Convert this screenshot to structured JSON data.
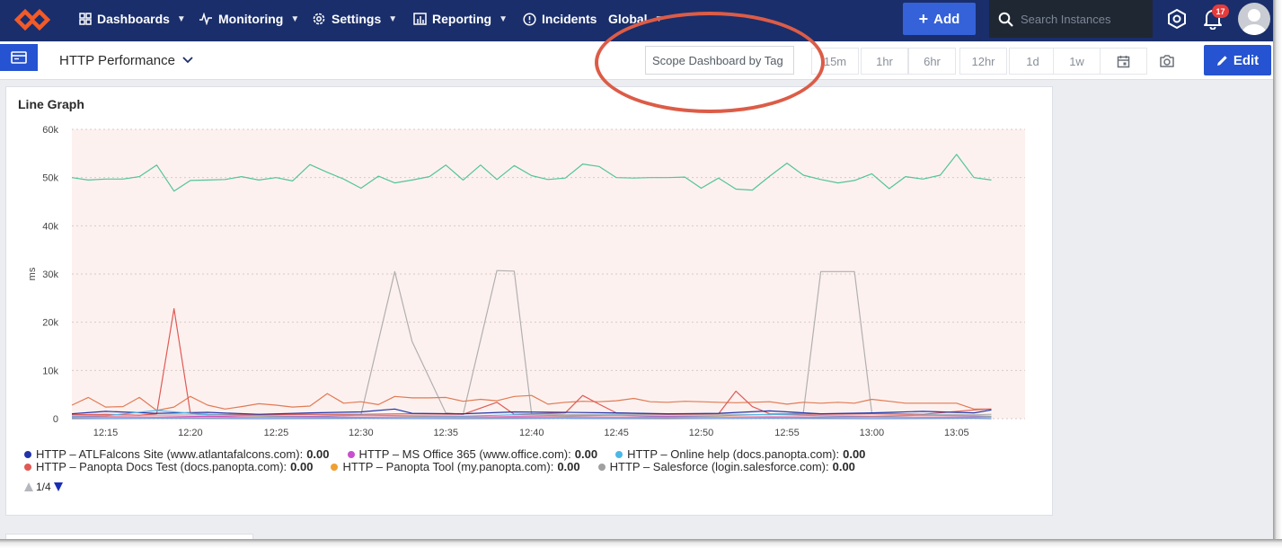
{
  "nav": {
    "items": [
      {
        "label": "Dashboards",
        "icon": "dashboards-icon",
        "has_menu": true
      },
      {
        "label": "Monitoring",
        "icon": "monitoring-icon",
        "has_menu": true
      },
      {
        "label": "Settings",
        "icon": "settings-icon",
        "has_menu": true
      },
      {
        "label": "Reporting",
        "icon": "reporting-icon",
        "has_menu": true
      },
      {
        "label": "Incidents",
        "icon": "incidents-icon",
        "has_menu": false
      },
      {
        "label": "Global",
        "icon": "",
        "has_menu": true
      }
    ],
    "add_label": "Add",
    "search_placeholder": "Search Instances",
    "notification_count": "17",
    "colors": {
      "bar": "#1a2e6b",
      "accent": "#3562d9",
      "logo": "#f15a29",
      "badge": "#e53b3b"
    }
  },
  "toolbar": {
    "dashboard_title": "HTTP Performance",
    "scope_placeholder": "Scope Dashboard by Tag",
    "time_ranges": [
      "15m",
      "1hr",
      "6hr",
      "12hr",
      "1d",
      "1w"
    ],
    "edit_label": "Edit",
    "annotation_color": "#dc5c47"
  },
  "widget": {
    "title": "Line Graph",
    "pager": "1/4",
    "legend_rows": [
      [
        {
          "label": "HTTP – ATLFalcons Site (www.atlantafalcons.com):",
          "value": "0.00",
          "color": "#2233a8"
        },
        {
          "label": "HTTP – MS Office 365 (www.office.com):",
          "value": "0.00",
          "color": "#c94fcf"
        },
        {
          "label": "HTTP – Online help (docs.panopta.com):",
          "value": "0.00",
          "color": "#4bb8e8"
        }
      ],
      [
        {
          "label": "HTTP – Panopta Docs Test (docs.panopta.com):",
          "value": "0.00",
          "color": "#e05a55"
        },
        {
          "label": "HTTP – Panopta Tool (my.panopta.com):",
          "value": "0.00",
          "color": "#f0a030"
        },
        {
          "label": "HTTP – Salesforce (login.salesforce.com):",
          "value": "0.00",
          "color": "#a0a0a0"
        }
      ]
    ]
  },
  "chart_data": {
    "type": "line",
    "title": "Line Graph",
    "xlabel": "",
    "ylabel": "ms",
    "ylim": [
      0,
      60000
    ],
    "xlim": [
      12.217,
      13.15
    ],
    "grid": "horizontal dotted",
    "background": "#fdf1ef",
    "yticks": [
      0,
      10000,
      20000,
      30000,
      40000,
      50000,
      60000
    ],
    "ytick_labels": [
      "0",
      "10k",
      "20k",
      "30k",
      "40k",
      "50k",
      "60k"
    ],
    "xticks": [
      12.25,
      12.333,
      12.417,
      12.5,
      12.583,
      12.667,
      12.75,
      12.833,
      12.917,
      13.0,
      13.083
    ],
    "xtick_labels": [
      "12:15",
      "12:20",
      "12:25",
      "12:30",
      "12:35",
      "12:40",
      "12:45",
      "12:50",
      "12:55",
      "13:00",
      "13:05"
    ],
    "series": [
      {
        "color": "#52c49a",
        "x": [
          12.217,
          12.233,
          12.25,
          12.267,
          12.283,
          12.3,
          12.317,
          12.333,
          12.35,
          12.367,
          12.383,
          12.4,
          12.417,
          12.433,
          12.45,
          12.467,
          12.483,
          12.5,
          12.517,
          12.533,
          12.55,
          12.567,
          12.583,
          12.6,
          12.617,
          12.633,
          12.65,
          12.667,
          12.683,
          12.7,
          12.717,
          12.733,
          12.75,
          12.767,
          12.783,
          12.8,
          12.817,
          12.833,
          12.85,
          12.867,
          12.883,
          12.9,
          12.917,
          12.933,
          12.95,
          12.967,
          12.983,
          13.0,
          13.017,
          13.033,
          13.05,
          13.067,
          13.083,
          13.1,
          13.117
        ],
        "y": [
          50000,
          49500,
          49700,
          49700,
          50200,
          52600,
          47200,
          49400,
          49500,
          49600,
          50200,
          49500,
          50000,
          49300,
          52700,
          51100,
          49700,
          47800,
          50300,
          48900,
          49500,
          50200,
          52600,
          49500,
          52600,
          49600,
          52500,
          50400,
          49600,
          49900,
          52800,
          52300,
          50000,
          49900,
          50000,
          50000,
          50100,
          47800,
          49900,
          47600,
          47400,
          50300,
          53000,
          50500,
          49600,
          48900,
          49400,
          50800,
          47700,
          50200,
          49700,
          50500,
          54800,
          50000,
          49500
        ]
      },
      {
        "color": "#b0b0b0",
        "x": [
          12.217,
          12.3,
          12.4,
          12.5,
          12.533,
          12.55,
          12.583,
          12.6,
          12.633,
          12.65,
          12.667,
          12.7,
          12.75,
          12.8,
          12.85,
          12.9,
          12.933,
          12.95,
          12.983,
          13.0,
          13.05,
          13.1,
          13.117
        ],
        "y": [
          800,
          700,
          900,
          800,
          30500,
          16000,
          1200,
          900,
          30700,
          30600,
          1000,
          800,
          900,
          800,
          900,
          800,
          1200,
          30500,
          30500,
          1200,
          900,
          800,
          900
        ]
      },
      {
        "color": "#e07b53",
        "x": [
          12.217,
          12.233,
          12.25,
          12.267,
          12.283,
          12.3,
          12.317,
          12.333,
          12.35,
          12.367,
          12.383,
          12.4,
          12.417,
          12.433,
          12.45,
          12.467,
          12.483,
          12.5,
          12.517,
          12.533,
          12.55,
          12.567,
          12.583,
          12.6,
          12.617,
          12.633,
          12.65,
          12.667,
          12.683,
          12.7,
          12.717,
          12.733,
          12.75,
          12.767,
          12.783,
          12.8,
          12.817,
          12.833,
          12.85,
          12.867,
          12.883,
          12.9,
          12.917,
          12.933,
          12.95,
          12.967,
          12.983,
          13.0,
          13.017,
          13.033,
          13.05,
          13.067,
          13.083,
          13.1,
          13.117
        ],
        "y": [
          2800,
          4400,
          2400,
          2500,
          4400,
          1700,
          2400,
          4600,
          2800,
          2000,
          2500,
          3100,
          2800,
          2400,
          2600,
          5200,
          3200,
          3500,
          2900,
          4600,
          4300,
          4300,
          4400,
          3600,
          4000,
          3700,
          4600,
          4800,
          3000,
          3400,
          3600,
          3500,
          3700,
          4200,
          3500,
          3400,
          3600,
          3500,
          3400,
          3300,
          3400,
          3500,
          3000,
          3400,
          3200,
          3400,
          3200,
          4000,
          3600,
          3200,
          3200,
          3200,
          3200,
          2000,
          2000
        ]
      },
      {
        "color": "#e05a55",
        "x": [
          12.217,
          12.25,
          12.283,
          12.3,
          12.317,
          12.333,
          12.35,
          12.4,
          12.45,
          12.5,
          12.55,
          12.6,
          12.633,
          12.65,
          12.7,
          12.717,
          12.733,
          12.75,
          12.8,
          12.85,
          12.867,
          12.883,
          12.9,
          12.95,
          13.0,
          13.05,
          13.1,
          13.117
        ],
        "y": [
          800,
          900,
          700,
          1000,
          22800,
          1100,
          900,
          800,
          900,
          900,
          1000,
          900,
          3400,
          900,
          1200,
          4800,
          3000,
          1200,
          900,
          1000,
          5700,
          2500,
          1000,
          900,
          1000,
          900,
          1800,
          2000
        ]
      },
      {
        "color": "#2233a8",
        "x": [
          12.217,
          12.25,
          12.3,
          12.35,
          12.4,
          12.45,
          12.5,
          12.533,
          12.55,
          12.6,
          12.65,
          12.7,
          12.75,
          12.8,
          12.85,
          12.9,
          12.95,
          13.0,
          13.05,
          13.1,
          13.117
        ],
        "y": [
          1000,
          1500,
          1100,
          1300,
          900,
          1200,
          1400,
          2000,
          1100,
          1000,
          1400,
          1300,
          1200,
          1000,
          1100,
          1600,
          1000,
          1200,
          1500,
          1200,
          1800
        ]
      },
      {
        "color": "#4bb8e8",
        "x": [
          12.217,
          12.25,
          12.3,
          12.35,
          12.4,
          12.45,
          12.5,
          12.55,
          12.6,
          12.65,
          12.7,
          12.75,
          12.8,
          12.85,
          12.9,
          12.95,
          13.0,
          13.05,
          13.1,
          13.117
        ],
        "y": [
          500,
          600,
          1700,
          800,
          600,
          500,
          700,
          600,
          500,
          800,
          600,
          700,
          500,
          600,
          900,
          600,
          500,
          700,
          600,
          500
        ]
      },
      {
        "color": "#c94fcf",
        "x": [
          12.217,
          12.25,
          12.3,
          12.35,
          12.4,
          12.45,
          12.5,
          12.55,
          12.6,
          12.65,
          12.7,
          12.75,
          12.8,
          12.85,
          12.9,
          12.95,
          13.0,
          13.05,
          13.1,
          13.117
        ],
        "y": [
          300,
          400,
          300,
          500,
          300,
          400,
          300,
          350,
          300,
          400,
          350,
          300,
          400,
          300,
          350,
          300,
          400,
          300,
          350,
          300
        ]
      },
      {
        "color": "#f0a030",
        "x": [
          12.217,
          12.25,
          12.3,
          12.35,
          12.4,
          12.45,
          12.5,
          12.55,
          12.6,
          12.65,
          12.7,
          12.75,
          12.8,
          12.85,
          12.9,
          12.95,
          13.0,
          13.05,
          13.1,
          13.117
        ],
        "y": [
          200,
          300,
          250,
          200,
          300,
          250,
          200,
          300,
          250,
          200,
          300,
          250,
          200,
          300,
          250,
          200,
          300,
          250,
          200,
          300
        ]
      },
      {
        "color": "#6a8fd8",
        "x": [
          12.217,
          12.3,
          12.4,
          12.5,
          12.6,
          12.7,
          12.8,
          12.9,
          13.0,
          13.1,
          13.117
        ],
        "y": [
          0,
          50,
          0,
          50,
          0,
          50,
          0,
          50,
          0,
          50,
          0
        ]
      }
    ]
  }
}
